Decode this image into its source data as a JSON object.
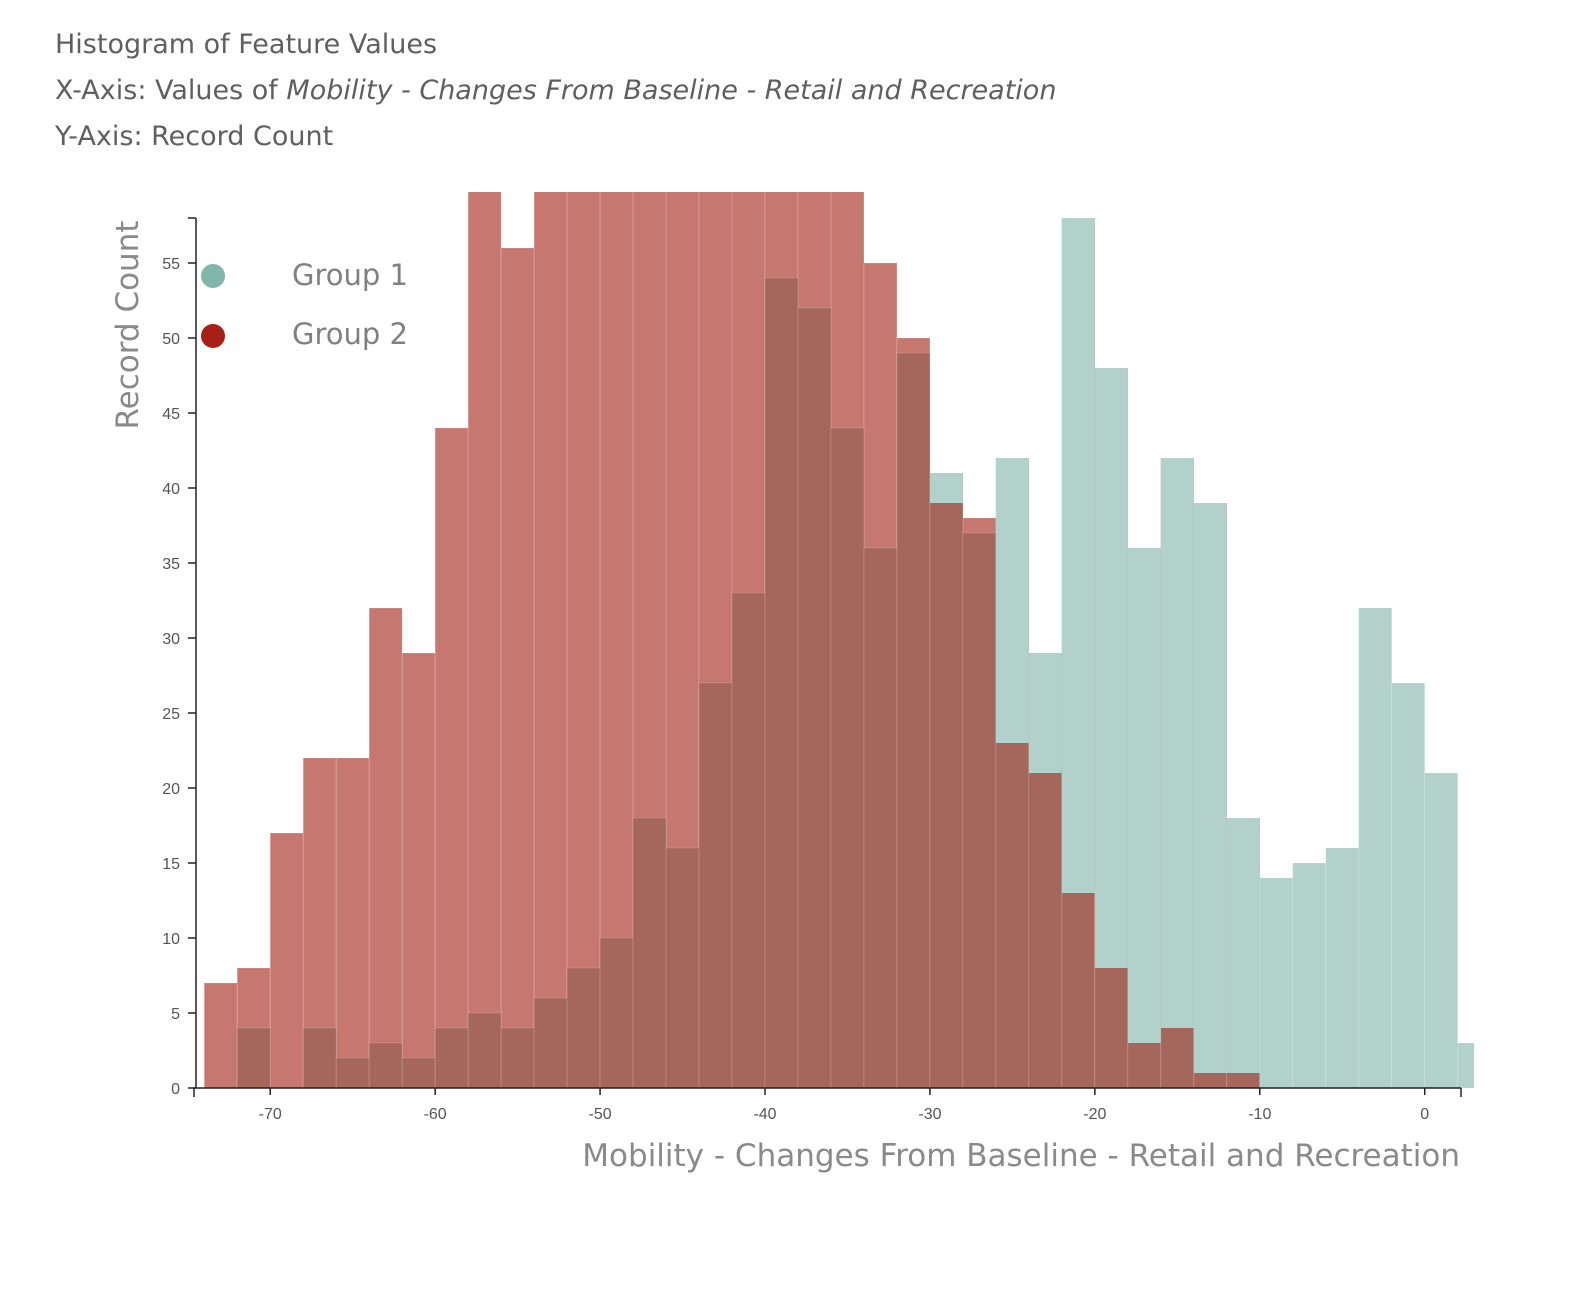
{
  "header": {
    "title": "Histogram of Feature Values",
    "x_prefix": "X-Axis: Values of ",
    "x_feature": "Mobility - Changes From Baseline - Retail and Recreation",
    "y_line": "Y-Axis: Record Count"
  },
  "colors": {
    "group1": "#7fb7ab",
    "group2": "#a81f16",
    "group1_fill": "#b1d1ca",
    "group2_fill": "#c67770",
    "overlap_fill": "#a5665b"
  },
  "chart_data": {
    "type": "bar",
    "xlabel": "Mobility - Changes From Baseline - Retail and Recreation",
    "ylabel": "Record Count",
    "xlim": [
      -74.5,
      2.2
    ],
    "ylim": [
      0,
      58
    ],
    "bin_width": 2,
    "x_ticks": [
      -70,
      -60,
      -50,
      -40,
      -30,
      -20,
      -10,
      0
    ],
    "y_ticks": [
      0,
      5,
      10,
      15,
      20,
      25,
      30,
      35,
      40,
      45,
      50,
      55
    ],
    "legend": {
      "position": "top-left",
      "entries": [
        "Group 1",
        "Group 2"
      ]
    },
    "series": [
      {
        "name": "Group 1",
        "bins": [
          {
            "x0": -72,
            "count": 4
          },
          {
            "x0": -70,
            "count": 0
          },
          {
            "x0": -68,
            "count": 4
          },
          {
            "x0": -66,
            "count": 2
          },
          {
            "x0": -64,
            "count": 3
          },
          {
            "x0": -62,
            "count": 2
          },
          {
            "x0": -60,
            "count": 4
          },
          {
            "x0": -58,
            "count": 5
          },
          {
            "x0": -56,
            "count": 4
          },
          {
            "x0": -54,
            "count": 6
          },
          {
            "x0": -52,
            "count": 8
          },
          {
            "x0": -50,
            "count": 10
          },
          {
            "x0": -48,
            "count": 18
          },
          {
            "x0": -46,
            "count": 16
          },
          {
            "x0": -44,
            "count": 27
          },
          {
            "x0": -42,
            "count": 33
          },
          {
            "x0": -40,
            "count": 54
          },
          {
            "x0": -38,
            "count": 52
          },
          {
            "x0": -36,
            "count": 44
          },
          {
            "x0": -34,
            "count": 36
          },
          {
            "x0": -32,
            "count": 49
          },
          {
            "x0": -30,
            "count": 41
          },
          {
            "x0": -28,
            "count": 37
          },
          {
            "x0": -26,
            "count": 42
          },
          {
            "x0": -24,
            "count": 29
          },
          {
            "x0": -22,
            "count": 58
          },
          {
            "x0": -20,
            "count": 48
          },
          {
            "x0": -18,
            "count": 36
          },
          {
            "x0": -16,
            "count": 42
          },
          {
            "x0": -14,
            "count": 39
          },
          {
            "x0": -12,
            "count": 18
          },
          {
            "x0": -10,
            "count": 14
          },
          {
            "x0": -8,
            "count": 15
          },
          {
            "x0": -6,
            "count": 16
          },
          {
            "x0": -4,
            "count": 32
          },
          {
            "x0": -2,
            "count": 27
          },
          {
            "x0": 0,
            "count": 21
          },
          {
            "x0": 2,
            "count": 3
          }
        ]
      },
      {
        "name": "Group 2",
        "bins": [
          {
            "x0": -74,
            "count": 7
          },
          {
            "x0": -72,
            "count": 8
          },
          {
            "x0": -70,
            "count": 17
          },
          {
            "x0": -68,
            "count": 22
          },
          {
            "x0": -66,
            "count": 22
          },
          {
            "x0": -64,
            "count": 32
          },
          {
            "x0": -62,
            "count": 29
          },
          {
            "x0": -60,
            "count": 44
          },
          {
            "x0": -58,
            "count": 60
          },
          {
            "x0": -56,
            "count": 56
          },
          {
            "x0": -54,
            "count": 60
          },
          {
            "x0": -52,
            "count": 60
          },
          {
            "x0": -50,
            "count": 60
          },
          {
            "x0": -48,
            "count": 60
          },
          {
            "x0": -46,
            "count": 60
          },
          {
            "x0": -44,
            "count": 60
          },
          {
            "x0": -42,
            "count": 60
          },
          {
            "x0": -40,
            "count": 60
          },
          {
            "x0": -38,
            "count": 60
          },
          {
            "x0": -36,
            "count": 60
          },
          {
            "x0": -34,
            "count": 55
          },
          {
            "x0": -32,
            "count": 50
          },
          {
            "x0": -30,
            "count": 39
          },
          {
            "x0": -28,
            "count": 38
          },
          {
            "x0": -26,
            "count": 23
          },
          {
            "x0": -24,
            "count": 21
          },
          {
            "x0": -22,
            "count": 13
          },
          {
            "x0": -20,
            "count": 8
          },
          {
            "x0": -18,
            "count": 3
          },
          {
            "x0": -16,
            "count": 4
          },
          {
            "x0": -14,
            "count": 1
          },
          {
            "x0": -12,
            "count": 1
          }
        ]
      }
    ]
  }
}
